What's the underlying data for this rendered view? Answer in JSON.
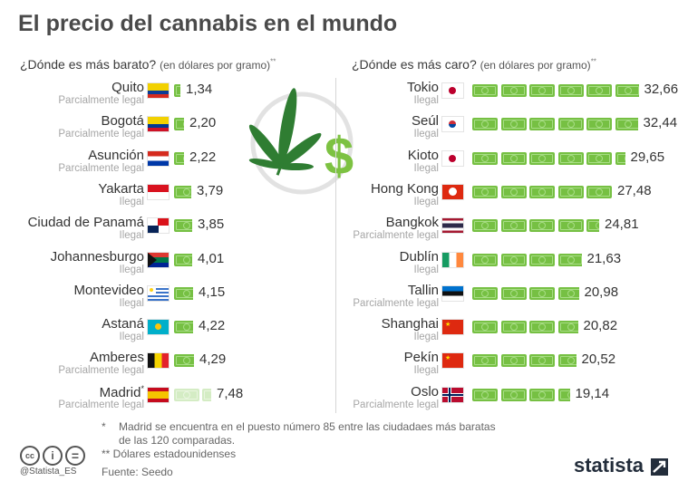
{
  "title": "El precio del cannabis en el mundo",
  "left_heading": {
    "main": "¿Dónde es más barato?",
    "sub": "(en dólares por gramo)",
    "mark": "**"
  },
  "right_heading": {
    "main": "¿Dónde es más caro?",
    "sub": "(en dólares por gramo)",
    "mark": "**"
  },
  "chart_data": [
    {
      "type": "bar",
      "title": "¿Dónde es más barato?",
      "unit": "en dólares por gramo",
      "categories": [
        "Quito",
        "Bogotá",
        "Asunción",
        "Yakarta",
        "Ciudad de Panamá",
        "Johannesburgo",
        "Montevideo",
        "Astaná",
        "Amberes",
        "Madrid"
      ],
      "values": [
        1.34,
        2.2,
        2.22,
        3.79,
        3.85,
        4.01,
        4.15,
        4.22,
        4.29,
        7.48
      ],
      "value_labels": [
        "1,34",
        "2,20",
        "2,22",
        "3,79",
        "3,85",
        "4,01",
        "4,15",
        "4,22",
        "4,29",
        "7,48"
      ],
      "status": [
        "Parcialmente legal",
        "Parcialmente legal",
        "Parcialmente legal",
        "Ilegal",
        "Ilegal",
        "Ilegal",
        "Ilegal",
        "Ilegal",
        "Parcialmente legal",
        "Parcialmente legal"
      ],
      "flags": [
        "ecuador",
        "colombia",
        "paraguay",
        "indonesia",
        "panama",
        "south-africa",
        "uruguay",
        "kazakhstan",
        "belgium",
        "spain"
      ],
      "city_marks": [
        "",
        "",
        "",
        "",
        "",
        "",
        "",
        "",
        "",
        "*"
      ],
      "highlighted": [
        false,
        false,
        false,
        false,
        false,
        false,
        false,
        false,
        false,
        true
      ],
      "units_per_bill": 5.5
    },
    {
      "type": "bar",
      "title": "¿Dónde es más caro?",
      "unit": "en dólares por gramo",
      "categories": [
        "Tokio",
        "Seúl",
        "Kioto",
        "Hong Kong",
        "Bangkok",
        "Dublín",
        "Tallin",
        "Shanghai",
        "Pekín",
        "Oslo"
      ],
      "values": [
        32.66,
        32.44,
        29.65,
        27.48,
        24.81,
        21.63,
        20.98,
        20.82,
        20.52,
        19.14
      ],
      "value_labels": [
        "32,66",
        "32,44",
        "29,65",
        "27,48",
        "24,81",
        "21,63",
        "20,98",
        "20,82",
        "20,52",
        "19,14"
      ],
      "status": [
        "Ilegal",
        "Ilegal",
        "Ilegal",
        "Ilegal",
        "Parcialmente legal",
        "Ilegal",
        "Parcialmente legal",
        "Ilegal",
        "Ilegal",
        "Parcialmente legal"
      ],
      "flags": [
        "japan",
        "south-korea",
        "japan",
        "hong-kong",
        "thailand",
        "ireland",
        "estonia",
        "china",
        "china",
        "norway"
      ],
      "city_marks": [
        "",
        "",
        "",
        "",
        "",
        "",
        "",
        "",
        "",
        ""
      ],
      "highlighted": [
        false,
        false,
        false,
        false,
        false,
        false,
        false,
        false,
        false,
        false
      ],
      "units_per_bill": 5.5
    }
  ],
  "footnotes": {
    "star_mark": "*",
    "star_line1": "Madrid se encuentra en el puesto número 85 entre las ciudadaes más baratas",
    "star_line2": "de las 120 comparadas.",
    "dollars": "** Dólares estadounidenses",
    "source": "Fuente: Seedo"
  },
  "license_icons": {
    "cc": "cc",
    "by": "i",
    "nd": "="
  },
  "handle": "@Statista_ES",
  "brand": "statista",
  "colors": {
    "bill": "#76c043",
    "bill_faded": "#d4ecc4",
    "leaf": "#2f7d32",
    "dollar": "#7dc242",
    "brand": "#232d3b"
  }
}
